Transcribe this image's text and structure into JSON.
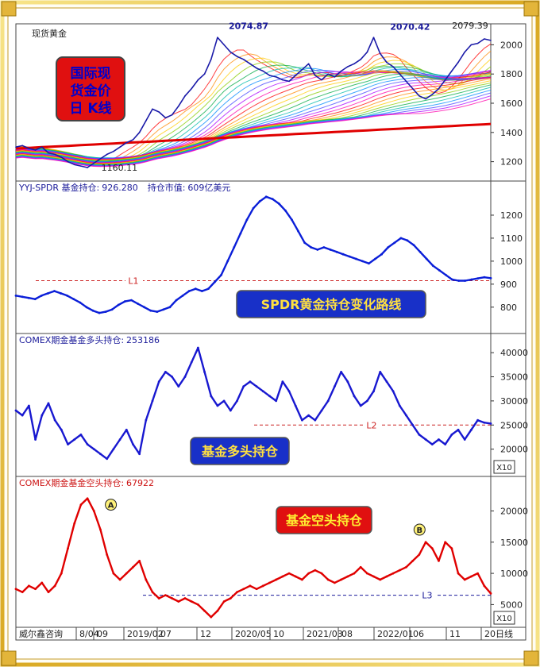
{
  "chart_data": [
    {
      "type": "line",
      "panel": "spot-gold",
      "title": "现货黄金",
      "badge": "国际现货金价日 K线",
      "badge_lines": [
        "国际现",
        "货金价",
        "日  K线"
      ],
      "ylim": [
        1100,
        2100
      ],
      "yticks": [
        1200,
        1400,
        1600,
        1800,
        2000
      ],
      "annotations": [
        {
          "label": "2074.87",
          "x": 0.49,
          "y": 2074.87
        },
        {
          "label": "2070.42",
          "x": 0.83,
          "y": 2070.42
        },
        {
          "label": "2079.39",
          "x": 0.97,
          "y": 2079.39
        },
        {
          "label": "1160.11",
          "x": 0.18,
          "y": 1160.11
        }
      ],
      "series": [
        {
          "values": [
            1300,
            1310,
            1290,
            1280,
            1300,
            1260,
            1250,
            1230,
            1200,
            1180,
            1170,
            1160,
            1190,
            1220,
            1250,
            1270,
            1300,
            1330,
            1350,
            1400,
            1480,
            1560,
            1540,
            1500,
            1520,
            1580,
            1650,
            1700,
            1760,
            1800,
            1900,
            2050,
            2000,
            1950,
            1920,
            1900,
            1870,
            1840,
            1820,
            1790,
            1780,
            1760,
            1750,
            1790,
            1830,
            1870,
            1790,
            1760,
            1800,
            1780,
            1820,
            1850,
            1870,
            1900,
            1950,
            2050,
            1940,
            1880,
            1850,
            1800,
            1750,
            1700,
            1650,
            1630,
            1660,
            1700,
            1760,
            1820,
            1880,
            1950,
            2000,
            2010,
            2040,
            2030
          ]
        }
      ]
    },
    {
      "type": "line",
      "panel": "spdr-holdings",
      "header_prefix": "YYJ-SPDR 基金持仓:",
      "header_value": "926.280",
      "header_mid": "持仓市值:",
      "header_mv": "609亿美元",
      "caption": "SPDR黄金持仓变化路线",
      "ylim": [
        720,
        1300
      ],
      "yticks": [
        800,
        900,
        1000,
        1100,
        1200
      ],
      "reference": {
        "label": "L1",
        "y": 915
      },
      "series": [
        {
          "values": [
            850,
            845,
            840,
            835,
            850,
            860,
            870,
            860,
            850,
            835,
            820,
            800,
            785,
            775,
            780,
            790,
            810,
            825,
            830,
            815,
            800,
            785,
            780,
            790,
            800,
            830,
            850,
            870,
            880,
            870,
            880,
            910,
            940,
            1000,
            1060,
            1120,
            1180,
            1230,
            1260,
            1280,
            1270,
            1250,
            1220,
            1180,
            1130,
            1080,
            1060,
            1050,
            1060,
            1050,
            1040,
            1030,
            1020,
            1010,
            1000,
            990,
            1010,
            1030,
            1060,
            1080,
            1100,
            1090,
            1070,
            1040,
            1010,
            980,
            960,
            940,
            920,
            915,
            915,
            920,
            925,
            930,
            926
          ]
        }
      ]
    },
    {
      "type": "line",
      "panel": "comex-long",
      "header_prefix": "COMEX期金基金多头持仓:",
      "header_value": "253186",
      "caption": "基金多头持仓",
      "unit": "X10",
      "ylim": [
        15000,
        42000
      ],
      "yticks": [
        20000,
        25000,
        30000,
        35000,
        40000
      ],
      "reference": {
        "label": "L2",
        "y": 25000
      },
      "series": [
        {
          "values": [
            28000,
            27000,
            29000,
            22000,
            27000,
            29500,
            26000,
            24000,
            21000,
            22000,
            23000,
            21000,
            20000,
            19000,
            18000,
            20000,
            22000,
            24000,
            21000,
            19000,
            26000,
            30000,
            34000,
            36000,
            35000,
            33000,
            35000,
            38000,
            41000,
            36000,
            31000,
            29000,
            30000,
            28000,
            30000,
            33000,
            34000,
            33000,
            32000,
            31000,
            30000,
            34000,
            32000,
            29000,
            26000,
            27000,
            26000,
            28000,
            30000,
            33000,
            36000,
            34000,
            31000,
            29000,
            30000,
            32000,
            36000,
            34000,
            32000,
            29000,
            27000,
            25000,
            23000,
            22000,
            21000,
            22000,
            21000,
            23000,
            24000,
            22000,
            24000,
            26000,
            25500,
            25300
          ]
        }
      ]
    },
    {
      "type": "line",
      "panel": "comex-short",
      "header_prefix": "COMEX期金基金空头持仓:",
      "header_value": "67922",
      "caption": "基金空头持仓",
      "unit": "X10",
      "ylim": [
        2000,
        24000
      ],
      "yticks": [
        5000,
        10000,
        15000,
        20000
      ],
      "reference": {
        "label": "L3",
        "y": 6500
      },
      "markers": [
        {
          "label": "A",
          "x": 0.2,
          "y": 21000
        },
        {
          "label": "B",
          "x": 0.85,
          "y": 17000
        }
      ],
      "series": [
        {
          "values": [
            7500,
            7000,
            8000,
            7500,
            8500,
            7000,
            8000,
            10000,
            14000,
            18000,
            21000,
            22000,
            20000,
            17000,
            13000,
            10000,
            9000,
            10000,
            11000,
            12000,
            9000,
            7000,
            6000,
            6500,
            6000,
            5500,
            6000,
            5500,
            5000,
            4000,
            3000,
            4000,
            5500,
            6000,
            7000,
            7500,
            8000,
            7500,
            8000,
            8500,
            9000,
            9500,
            10000,
            9500,
            9000,
            10000,
            10500,
            10000,
            9000,
            8500,
            9000,
            9500,
            10000,
            11000,
            10000,
            9500,
            9000,
            9500,
            10000,
            10500,
            11000,
            12000,
            13000,
            15000,
            14000,
            12000,
            15000,
            14000,
            10000,
            9000,
            9500,
            10000,
            8000,
            6792
          ]
        }
      ]
    }
  ],
  "footer": {
    "source": "威尔鑫咨询",
    "labels": [
      "8/04",
      "09",
      "2019/02",
      "07",
      "12",
      "2020/05",
      "10",
      "2021/03",
      "08",
      "2022/01",
      "06",
      "11",
      "20"
    ],
    "tail": "日线"
  },
  "colors": {
    "gold": "#1a1aa8",
    "spdr": "#0a1ed8",
    "long": "#1818d0",
    "short": "#e00000",
    "badge_red": "#e01010",
    "badge_text": "#0000cc",
    "caption_bg": "#1830c8",
    "caption_text": "#ffe040",
    "red_caption_text": "#ffee30",
    "frame": "#e9c33a"
  }
}
